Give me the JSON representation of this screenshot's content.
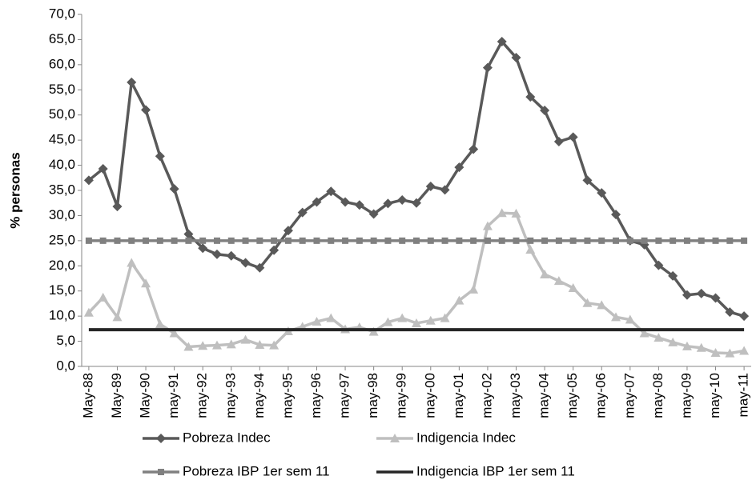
{
  "chart_data": {
    "type": "line",
    "y_label": "% personas",
    "categories": [
      "May-88",
      null,
      "May-89",
      null,
      "May-90",
      null,
      "may-91",
      null,
      "may-92",
      null,
      "may-93",
      null,
      "may-94",
      null,
      "may-95",
      null,
      "may-96",
      null,
      "may-97",
      null,
      "may-98",
      null,
      "may-99",
      null,
      "may-00",
      null,
      "may-01",
      null,
      "may-02",
      null,
      "may-03",
      null,
      "may-04",
      null,
      "may-05",
      null,
      "may-06",
      null,
      "may-07",
      null,
      "may-08",
      null,
      "may-09",
      null,
      "may-10",
      null,
      "may-11"
    ],
    "series": [
      {
        "name": "Pobreza Indec",
        "color": "#595959",
        "marker": "diamond",
        "values": [
          37,
          39.3,
          31.8,
          56.5,
          51,
          41.8,
          35.3,
          26.3,
          23.5,
          22.3,
          22,
          20.6,
          19.6,
          23.1,
          27,
          30.6,
          32.7,
          34.8,
          32.7,
          32.1,
          30.3,
          32.4,
          33.1,
          32.5,
          35.8,
          35.1,
          39.6,
          43.2,
          59.4,
          64.6,
          61.4,
          53.6,
          50.9,
          44.7,
          45.6,
          37,
          34.5,
          30.2,
          25,
          24.2,
          20.1,
          18,
          14.2,
          14.5,
          13.6,
          10.8,
          10
        ]
      },
      {
        "name": "Indigencia Indec",
        "color": "#bfbfbf",
        "marker": "triangle",
        "values": [
          10.7,
          13.7,
          9.8,
          20.6,
          16.5,
          8.4,
          6.6,
          3.9,
          4.1,
          4.2,
          4.4,
          5.3,
          4.3,
          4.2,
          7,
          7.9,
          8.9,
          9.6,
          7.4,
          7.8,
          6.9,
          8.8,
          9.6,
          8.6,
          9.1,
          9.6,
          13.1,
          15.3,
          27.9,
          30.5,
          30.4,
          23.2,
          18.3,
          17,
          15.6,
          12.6,
          12.2,
          9.8,
          9.3,
          6.6,
          5.7,
          4.8,
          4,
          3.7,
          2.7,
          2.6,
          3.1
        ]
      },
      {
        "name": "Pobreza IBP 1er sem 11",
        "color": "#808080",
        "marker": "square",
        "values": [
          25,
          25,
          25,
          25,
          25,
          25,
          25,
          25,
          25,
          25,
          25,
          25,
          25,
          25,
          25,
          25,
          25,
          25,
          25,
          25,
          25,
          25,
          25,
          25,
          25,
          25,
          25,
          25,
          25,
          25,
          25,
          25,
          25,
          25,
          25,
          25,
          25,
          25,
          25,
          25,
          25,
          25,
          25,
          25,
          25,
          25,
          25
        ]
      },
      {
        "name": "Indigencia IBP 1er sem 11",
        "color": "#262626",
        "marker": "none",
        "values": [
          7.3,
          7.3,
          7.3,
          7.3,
          7.3,
          7.3,
          7.3,
          7.3,
          7.3,
          7.3,
          7.3,
          7.3,
          7.3,
          7.3,
          7.3,
          7.3,
          7.3,
          7.3,
          7.3,
          7.3,
          7.3,
          7.3,
          7.3,
          7.3,
          7.3,
          7.3,
          7.3,
          7.3,
          7.3,
          7.3,
          7.3,
          7.3,
          7.3,
          7.3,
          7.3,
          7.3,
          7.3,
          7.3,
          7.3,
          7.3,
          7.3,
          7.3,
          7.3,
          7.3,
          7.3,
          7.3,
          7.3
        ]
      }
    ],
    "ylim": [
      0,
      70
    ],
    "yticks": [
      {
        "value": 0,
        "label": "0,0"
      },
      {
        "value": 5,
        "label": "5,0"
      },
      {
        "value": 10,
        "label": "10,0"
      },
      {
        "value": 15,
        "label": "15,0"
      },
      {
        "value": 20,
        "label": "20,0"
      },
      {
        "value": 25,
        "label": "25,0"
      },
      {
        "value": 30,
        "label": "30,0"
      },
      {
        "value": 35,
        "label": "35,0"
      },
      {
        "value": 40,
        "label": "40,0"
      },
      {
        "value": 45,
        "label": "45,0"
      },
      {
        "value": 50,
        "label": "50,0"
      },
      {
        "value": 55,
        "label": "55,0"
      },
      {
        "value": 60,
        "label": "60,0"
      },
      {
        "value": 65,
        "label": "65,0"
      },
      {
        "value": 70,
        "label": "70,0"
      }
    ],
    "grid": false,
    "legend": "bottom"
  }
}
